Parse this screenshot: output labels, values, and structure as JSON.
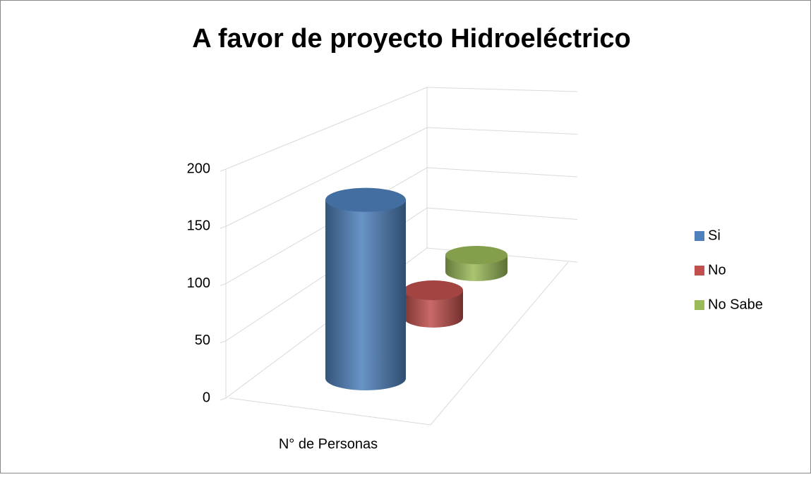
{
  "chart_data": {
    "type": "bar3d-cylinder",
    "title": "A favor de proyecto Hidroeléctrico",
    "categories": [
      "N° de Personas"
    ],
    "series": [
      {
        "name": "Si",
        "color": "#4f81bd",
        "values": [
          170
        ]
      },
      {
        "name": "No",
        "color": "#c0504d",
        "values": [
          30
        ]
      },
      {
        "name": "No Sabe",
        "color": "#9bbb59",
        "values": [
          20
        ]
      }
    ],
    "ylim": [
      0,
      200
    ],
    "yticks": [
      0,
      50,
      100,
      150,
      200
    ],
    "grid": true,
    "legend": "right"
  }
}
